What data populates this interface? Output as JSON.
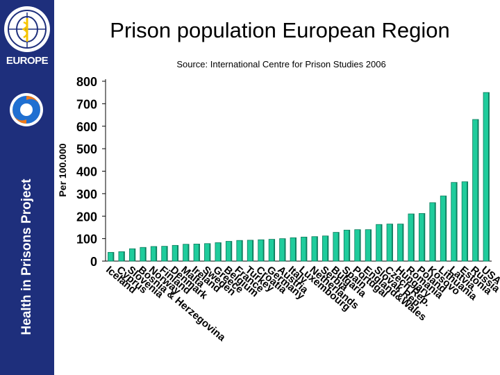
{
  "header": {
    "title": "Prison population European Region",
    "source": "Source: International Centre for Prison Studies 2006"
  },
  "sidebar": {
    "org_label": "EUROPE",
    "project_title": "Health in Prisons Project",
    "logo_icon": "who-emblem-icon",
    "project_icon": "swirl-logo-icon"
  },
  "colors": {
    "sidebar": "#1e2f7c",
    "bar": "#1fcc9c",
    "bar_shade": "#0f7d5e",
    "swirl_blue": "#1f6fd1",
    "swirl_orange": "#f07a19"
  },
  "chart_data": {
    "type": "bar",
    "ylabel": "Per 100.000",
    "ylim": [
      0,
      800
    ],
    "yticks": [
      0,
      100,
      200,
      300,
      400,
      500,
      600,
      700,
      800
    ],
    "grid": false,
    "categories": [
      "Iceland",
      "Cyprus",
      "Slovenia",
      "Bosnia & Herzegovina",
      "Norway",
      "Finland",
      "Denmark",
      "Malta",
      "Ireland",
      "Sweden",
      "Greece",
      "Belgium",
      "France",
      "Turkey",
      "Croatia",
      "Germany",
      "Austria",
      "Italy",
      "Luxembourg",
      "Netherlands",
      "Serbia",
      "Bulgaria",
      "Spain",
      "Portugal",
      "England&Wales",
      "Slovak Rep.",
      "Czech Rep.",
      "Hungary",
      "Romania",
      "Poland",
      "Kosovo",
      "Lithuania",
      "Latvia",
      "Estonia",
      "Russia",
      "USA"
    ],
    "values": [
      39,
      42,
      55,
      61,
      65,
      66,
      70,
      75,
      76,
      78,
      82,
      88,
      92,
      93,
      95,
      97,
      100,
      104,
      107,
      109,
      112,
      128,
      138,
      140,
      140,
      163,
      165,
      165,
      210,
      212,
      260,
      290,
      350,
      353,
      630,
      750
    ]
  }
}
